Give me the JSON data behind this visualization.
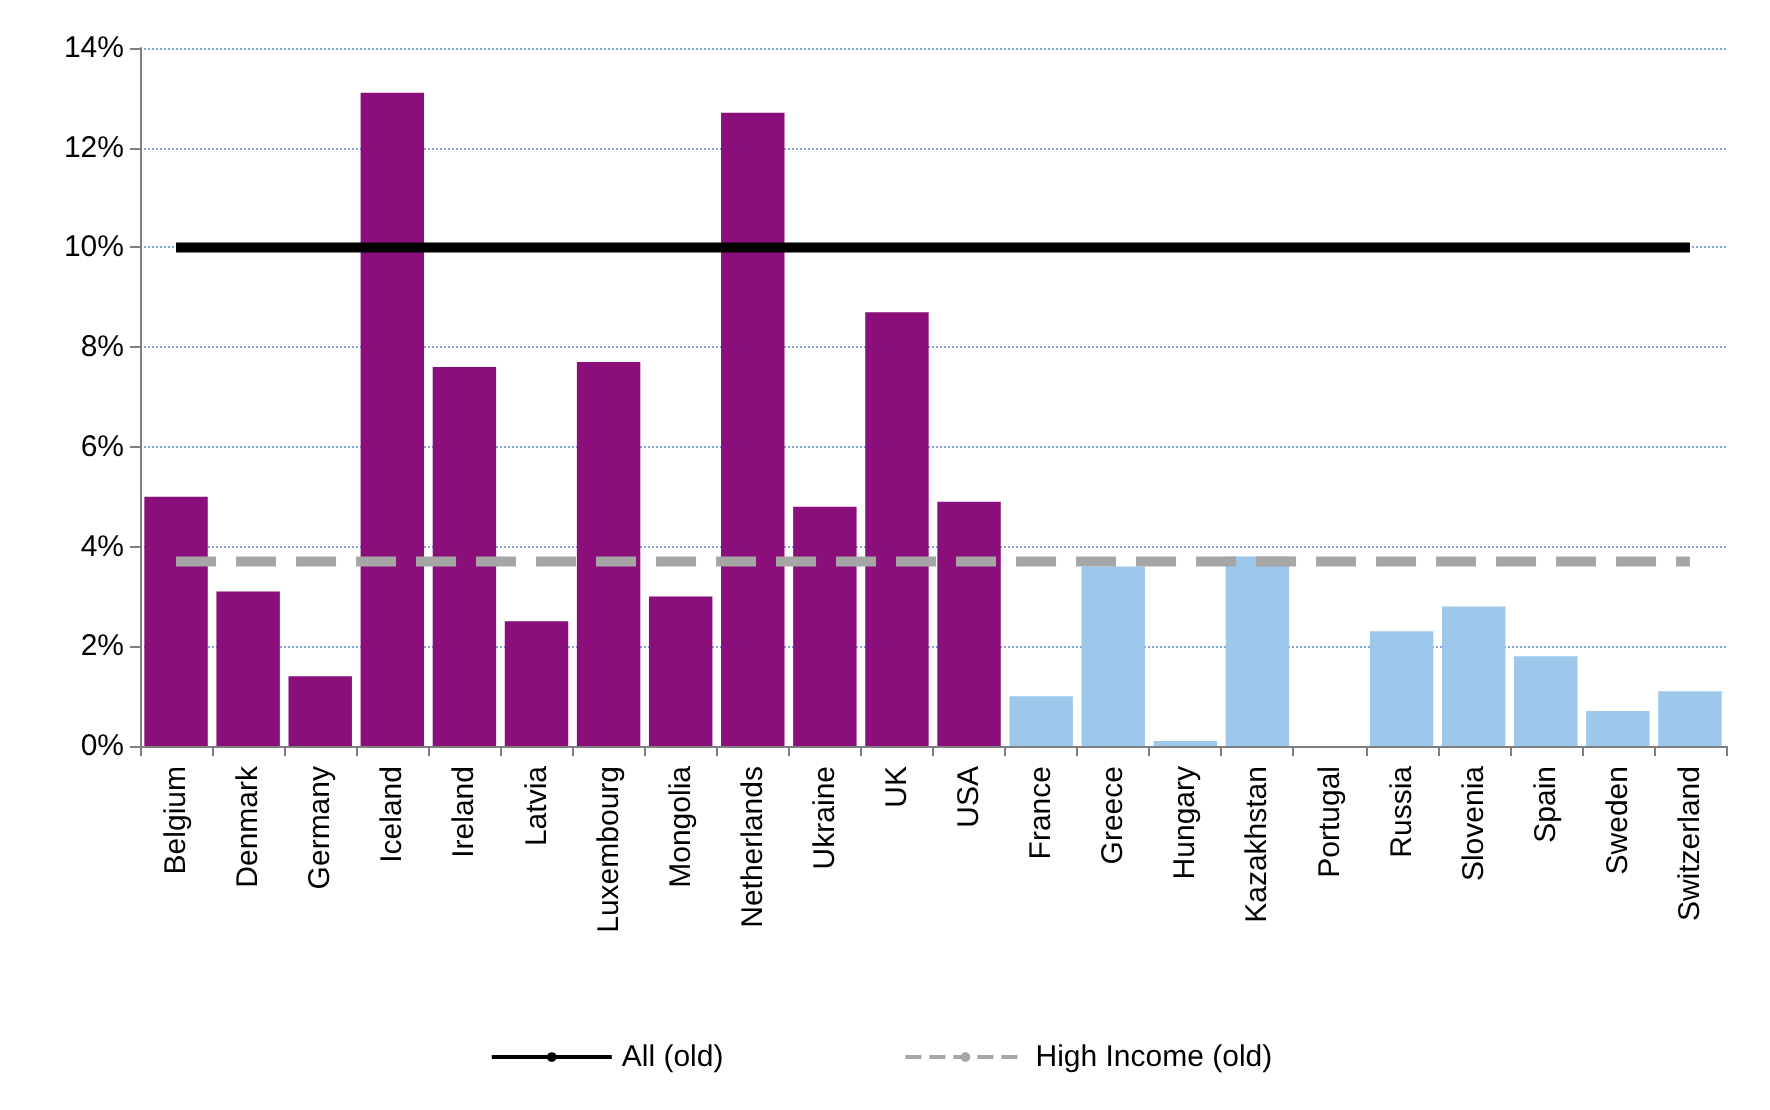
{
  "chart_data": {
    "type": "bar",
    "categories": [
      "Belgium",
      "Denmark",
      "Germany",
      "Iceland",
      "Ireland",
      "Latvia",
      "Luxembourg",
      "Mongolia",
      "Netherlands",
      "Ukraine",
      "UK",
      "USA",
      "France",
      "Greece",
      "Hungary",
      "Kazakhstan",
      "Portugal",
      "Russia",
      "Slovenia",
      "Spain",
      "Sweden",
      "Switzerland"
    ],
    "series": [
      {
        "colors": [
          "#8a0f7a",
          "#8a0f7a",
          "#8a0f7a",
          "#8a0f7a",
          "#8a0f7a",
          "#8a0f7a",
          "#8a0f7a",
          "#8a0f7a",
          "#8a0f7a",
          "#8a0f7a",
          "#8a0f7a",
          "#8a0f7a",
          "#9dc8ec",
          "#9dc8ec",
          "#9dc8ec",
          "#9dc8ec",
          "#9dc8ec",
          "#9dc8ec",
          "#9dc8ec",
          "#9dc8ec",
          "#9dc8ec",
          "#9dc8ec"
        ],
        "values": [
          5.0,
          3.1,
          1.4,
          13.1,
          7.6,
          2.5,
          7.7,
          3.0,
          12.7,
          4.8,
          8.7,
          4.9,
          1.0,
          3.6,
          0.1,
          3.8,
          0,
          2.3,
          2.8,
          1.8,
          0.7,
          1.1
        ]
      },
      {
        "type": "line",
        "name": "All (old)",
        "color": "#000000",
        "line_style": "solid",
        "values": [
          10,
          10,
          10,
          10,
          10,
          10,
          10,
          10,
          10,
          10,
          10,
          10,
          10,
          10,
          10,
          10,
          10,
          10,
          10,
          10,
          10,
          10
        ]
      },
      {
        "type": "line",
        "name": "High Income (old)",
        "color": "#a6a6a6",
        "line_style": "dashed",
        "values": [
          3.7,
          3.7,
          3.7,
          3.7,
          3.7,
          3.7,
          3.7,
          3.7,
          3.7,
          3.7,
          3.7,
          3.7,
          3.7,
          3.7,
          3.7,
          3.7,
          3.7,
          3.7,
          3.7,
          3.7,
          3.7,
          3.7
        ]
      }
    ],
    "ylim": [
      0,
      14
    ],
    "yticks": [
      {
        "value": 0,
        "label": "0%"
      },
      {
        "value": 2,
        "label": "2%"
      },
      {
        "value": 4,
        "label": "4%"
      },
      {
        "value": 6,
        "label": "6%"
      },
      {
        "value": 8,
        "label": "8%"
      },
      {
        "value": 10,
        "label": "10%"
      },
      {
        "value": 12,
        "label": "12%"
      },
      {
        "value": 14,
        "label": "14%"
      }
    ],
    "grid": "y",
    "legend": "bottom",
    "marker": "none"
  }
}
